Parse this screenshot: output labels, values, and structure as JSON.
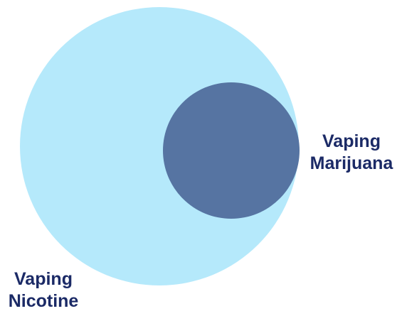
{
  "diagram": {
    "type": "venn",
    "sets": [
      {
        "id": "nicotine",
        "label_lines": [
          "Vaping",
          "Nicotine"
        ],
        "color": "#b5e9fb"
      },
      {
        "id": "marijuana",
        "label_lines": [
          "Vaping",
          "Marijuana"
        ],
        "color": "#5674a2"
      }
    ],
    "relationship": "marijuana set is a subset of nicotine set",
    "label_color": "#1b2a66",
    "background": "#ffffff"
  }
}
